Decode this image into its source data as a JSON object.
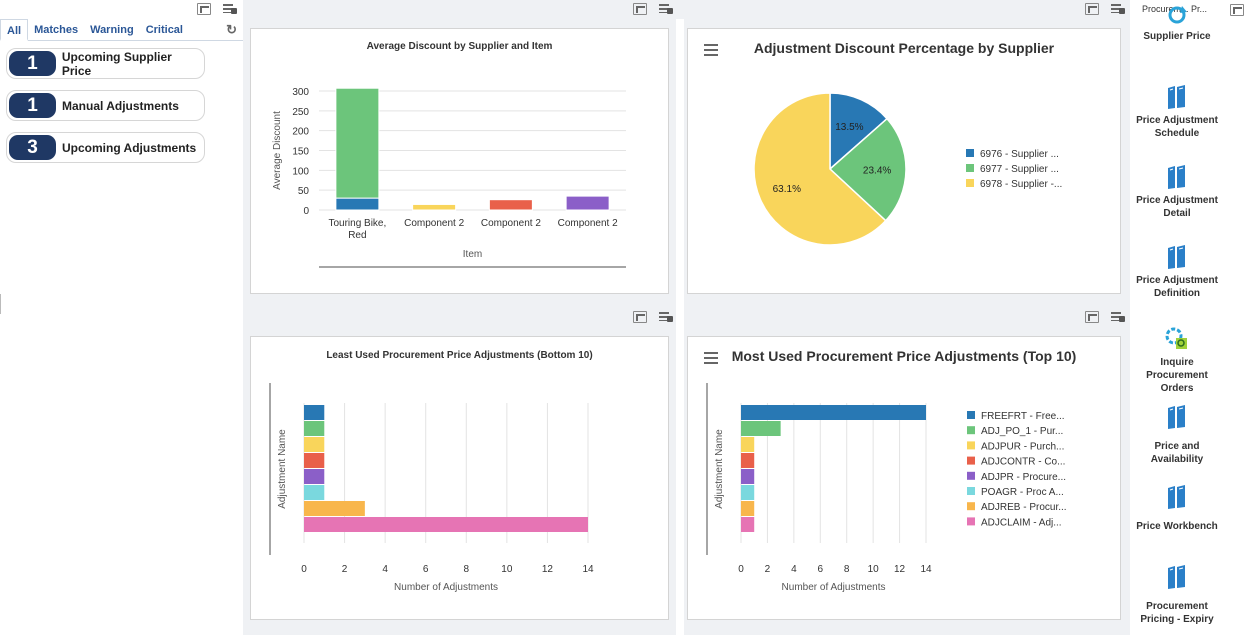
{
  "left_panel": {
    "tabs": [
      "All",
      "Matches",
      "Warning",
      "Critical"
    ],
    "alerts": [
      {
        "count": "1",
        "label": "Upcoming Supplier Price"
      },
      {
        "count": "1",
        "label": "Manual Adjustments"
      },
      {
        "count": "3",
        "label": "Upcoming Adjustments"
      }
    ]
  },
  "right_panel": {
    "header": "Procurem... Pr...",
    "items": [
      {
        "label": "Supplier Price",
        "icon": "refresh-icon"
      },
      {
        "label": "Price Adjustment Schedule",
        "icon": "book-icon"
      },
      {
        "label": "Price Adjustment Detail",
        "icon": "book-icon"
      },
      {
        "label": "Price Adjustment Definition",
        "icon": "book-icon"
      },
      {
        "label": "Inquire Procurement Orders",
        "icon": "search-gear-icon"
      },
      {
        "label": "Price and Availability",
        "icon": "book-icon"
      },
      {
        "label": "Price Workbench",
        "icon": "book-icon"
      },
      {
        "label": "Procurement Pricing - Expiry",
        "icon": "book-icon"
      }
    ]
  },
  "colors": {
    "navy": "#1f3864",
    "blue": "#2878b4",
    "green": "#6cc57b",
    "yellow": "#f9d55b",
    "red": "#e9604a",
    "purple": "#8b5fc8",
    "cyan": "#7ad8de",
    "orange": "#f8b64c",
    "pink": "#e674b4"
  },
  "chart_data": [
    {
      "type": "bar",
      "title": "Average Discount by Supplier and Item",
      "xlabel": "Item",
      "ylabel": "Average Discount",
      "ylim": [
        0,
        300
      ],
      "yticks": [
        "0",
        "50",
        "100",
        "150",
        "200",
        "250",
        "300"
      ],
      "categories": [
        "Touring Bike, Red",
        "Component 2",
        "Component 2",
        "Component 2"
      ],
      "category_lines": [
        [
          "Touring Bike,",
          "Red"
        ],
        [
          "Component 2"
        ],
        [
          "Component 2"
        ],
        [
          "Component 2"
        ]
      ],
      "stacks": [
        [
          {
            "value": 30,
            "color": "#2878b4"
          },
          {
            "value": 277,
            "color": "#6cc57b"
          }
        ],
        [
          {
            "value": 14,
            "color": "#f9d55b"
          }
        ],
        [
          {
            "value": 26,
            "color": "#e9604a"
          }
        ],
        [
          {
            "value": 35,
            "color": "#8b5fc8"
          }
        ]
      ]
    },
    {
      "type": "pie",
      "title": "Adjustment Discount Percentage by Supplier",
      "slices": [
        {
          "label": "6976 - Supplier ...",
          "value": 13.5,
          "pct": "13.5%",
          "color": "#2878b4"
        },
        {
          "label": "6977 - Supplier ...",
          "value": 23.4,
          "pct": "23.4%",
          "color": "#6cc57b"
        },
        {
          "label": "6978 - Supplier -...",
          "value": 63.1,
          "pct": "63.1%",
          "color": "#f9d55b"
        }
      ]
    },
    {
      "type": "bar",
      "orientation": "horizontal",
      "title": "Least Used Procurement Price Adjustments (Bottom 10)",
      "xlabel": "Number of Adjustments",
      "ylabel": "Adjustment Name",
      "xlim": [
        0,
        14
      ],
      "xticks": [
        "0",
        "2",
        "4",
        "6",
        "8",
        "10",
        "12",
        "14"
      ],
      "bars": [
        {
          "value": 1,
          "color": "#2878b4"
        },
        {
          "value": 1,
          "color": "#6cc57b"
        },
        {
          "value": 1,
          "color": "#f9d55b"
        },
        {
          "value": 1,
          "color": "#e9604a"
        },
        {
          "value": 1,
          "color": "#8b5fc8"
        },
        {
          "value": 1,
          "color": "#7ad8de"
        },
        {
          "value": 3,
          "color": "#f8b64c"
        },
        {
          "value": 14,
          "color": "#e674b4"
        }
      ]
    },
    {
      "type": "bar",
      "orientation": "horizontal",
      "title": "Most Used Procurement Price Adjustments (Top 10)",
      "xlabel": "Number of Adjustments",
      "ylabel": "Adjustment Name",
      "xlim": [
        0,
        14
      ],
      "xticks": [
        "0",
        "2",
        "4",
        "6",
        "8",
        "10",
        "12",
        "14"
      ],
      "bars": [
        {
          "label": "FREEFRT - Free...",
          "value": 14,
          "color": "#2878b4"
        },
        {
          "label": "ADJ_PO_1 - Pur...",
          "value": 3,
          "color": "#6cc57b"
        },
        {
          "label": "ADJPUR - Purch...",
          "value": 1,
          "color": "#f9d55b"
        },
        {
          "label": "ADJCONTR - Co...",
          "value": 1,
          "color": "#e9604a"
        },
        {
          "label": "ADJPR - Procure...",
          "value": 1,
          "color": "#8b5fc8"
        },
        {
          "label": "POAGR - Proc A...",
          "value": 1,
          "color": "#7ad8de"
        },
        {
          "label": "ADJREB - Procur...",
          "value": 1,
          "color": "#f8b64c"
        },
        {
          "label": "ADJCLAIM - Adj...",
          "value": 1,
          "color": "#e674b4"
        }
      ]
    }
  ]
}
